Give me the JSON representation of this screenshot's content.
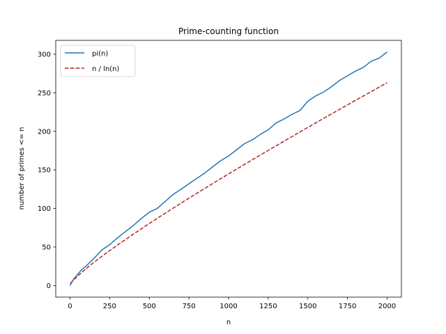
{
  "chart_data": {
    "type": "line",
    "title": "Prime-counting function",
    "xlabel": "n",
    "ylabel": "number of primes <= n",
    "xlim": [
      -90,
      2090
    ],
    "ylim": [
      -15,
      318
    ],
    "xticks": [
      0,
      250,
      500,
      750,
      1000,
      1250,
      1500,
      1750,
      2000
    ],
    "yticks": [
      0,
      50,
      100,
      150,
      200,
      250,
      300
    ],
    "grid": false,
    "legend_position": "top-left",
    "series": [
      {
        "name": "pi(n)",
        "style": "solid",
        "color": "#1f77b4",
        "x": [
          1,
          2,
          10,
          25,
          50,
          75,
          100,
          150,
          200,
          250,
          300,
          350,
          400,
          450,
          500,
          550,
          600,
          650,
          700,
          750,
          800,
          850,
          900,
          950,
          1000,
          1050,
          1100,
          1150,
          1200,
          1250,
          1300,
          1350,
          1400,
          1450,
          1500,
          1550,
          1600,
          1650,
          1700,
          1750,
          1800,
          1850,
          1900,
          1950,
          2000
        ],
        "y": [
          0,
          1,
          4,
          9,
          15,
          21,
          25,
          35,
          46,
          53,
          62,
          70,
          78,
          87,
          95,
          100,
          109,
          118,
          125,
          132,
          139,
          146,
          154,
          162,
          168,
          176,
          184,
          189,
          196,
          202,
          211,
          216,
          222,
          227,
          239,
          246,
          251,
          258,
          266,
          272,
          278,
          283,
          291,
          295,
          303
        ]
      },
      {
        "name": "n / ln(n)",
        "style": "dashed",
        "color": "#b22222",
        "x": [
          2,
          10,
          25,
          50,
          100,
          150,
          200,
          250,
          300,
          400,
          500,
          600,
          700,
          800,
          900,
          1000,
          1100,
          1200,
          1300,
          1400,
          1500,
          1600,
          1700,
          1800,
          1900,
          2000
        ],
        "y": [
          2.89,
          4.34,
          7.77,
          12.78,
          21.71,
          29.94,
          37.75,
          45.28,
          52.6,
          66.76,
          80.46,
          93.79,
          106.84,
          119.67,
          132.31,
          144.76,
          157.08,
          169.26,
          181.31,
          193.26,
          205.09,
          216.85,
          228.51,
          240.09,
          251.59,
          263.13
        ]
      }
    ]
  }
}
